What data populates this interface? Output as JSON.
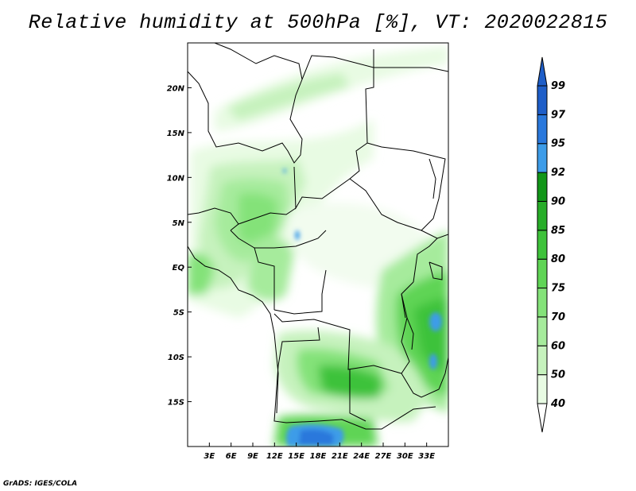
{
  "title": "Relative humidity at 500hPa [%], VT: 2020022815",
  "credit": "GrADS: IGES/COLA",
  "chart_data": {
    "type": "heatmap",
    "title": "Relative humidity at 500hPa [%], VT: 2020022815",
    "lon_range": [
      0,
      36
    ],
    "lat_range": [
      -20,
      25
    ],
    "lon_ticks": [
      "3E",
      "6E",
      "9E",
      "12E",
      "15E",
      "18E",
      "21E",
      "24E",
      "27E",
      "30E",
      "33E"
    ],
    "lon_tick_values": [
      3,
      6,
      9,
      12,
      15,
      18,
      21,
      24,
      27,
      30,
      33
    ],
    "lat_ticks": [
      "20N",
      "15N",
      "10N",
      "5N",
      "EQ",
      "5S",
      "10S",
      "15S"
    ],
    "lat_tick_values": [
      20,
      15,
      10,
      5,
      0,
      -5,
      -10,
      -15
    ],
    "colorbar": {
      "labels": [
        "40",
        "50",
        "60",
        "70",
        "75",
        "80",
        "85",
        "90",
        "92",
        "95",
        "97",
        "99"
      ],
      "colors": [
        "#ffffff",
        "#e8fbe3",
        "#c6f2bd",
        "#a6eb9c",
        "#84e279",
        "#5fd455",
        "#3ec23a",
        "#27ad28",
        "#129618",
        "#3d9ce8",
        "#2a78dc",
        "#1e5ec8"
      ]
    }
  }
}
